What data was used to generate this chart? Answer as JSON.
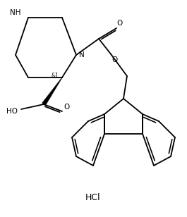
{
  "background_color": "#ffffff",
  "line_color": "#000000",
  "line_width": 1.3,
  "text_color": "#000000",
  "hcl_label": "HCl",
  "stereo_label": "&1",
  "ho_label": "HO",
  "nh_label": "NH",
  "o_label1": "O",
  "o_label2": "O",
  "o_label3": "O",
  "n_label": "N"
}
